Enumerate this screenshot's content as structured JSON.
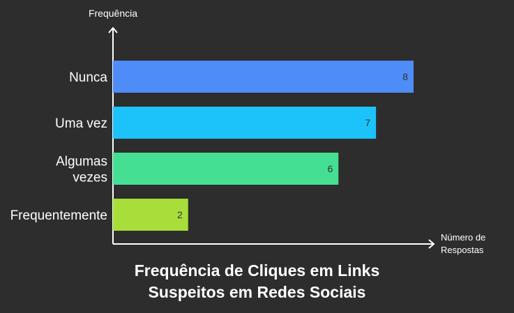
{
  "chart_data": {
    "type": "bar",
    "orientation": "horizontal",
    "title_lines": [
      "Frequência de Cliques em Links",
      "Suspeitos em Redes Sociais"
    ],
    "y_axis_label": "Frequência",
    "x_axis_label_lines": [
      "Número de",
      "Respostas"
    ],
    "categories": [
      {
        "label_lines": [
          "Nunca"
        ],
        "value": 8,
        "color": "#4e8cf8"
      },
      {
        "label_lines": [
          "Uma vez"
        ],
        "value": 7,
        "color": "#1cc3fb"
      },
      {
        "label_lines": [
          "Algumas",
          "vezes"
        ],
        "value": 6,
        "color": "#45df94"
      },
      {
        "label_lines": [
          "Frequentemente"
        ],
        "value": 2,
        "color": "#a7de3a"
      }
    ],
    "xlim": [
      0,
      8
    ],
    "grid": false,
    "legend": "none"
  },
  "colors": {
    "background": "#2d2d2d",
    "axis": "#ffffff",
    "text": "#ffffff",
    "value_label": "#333333"
  }
}
